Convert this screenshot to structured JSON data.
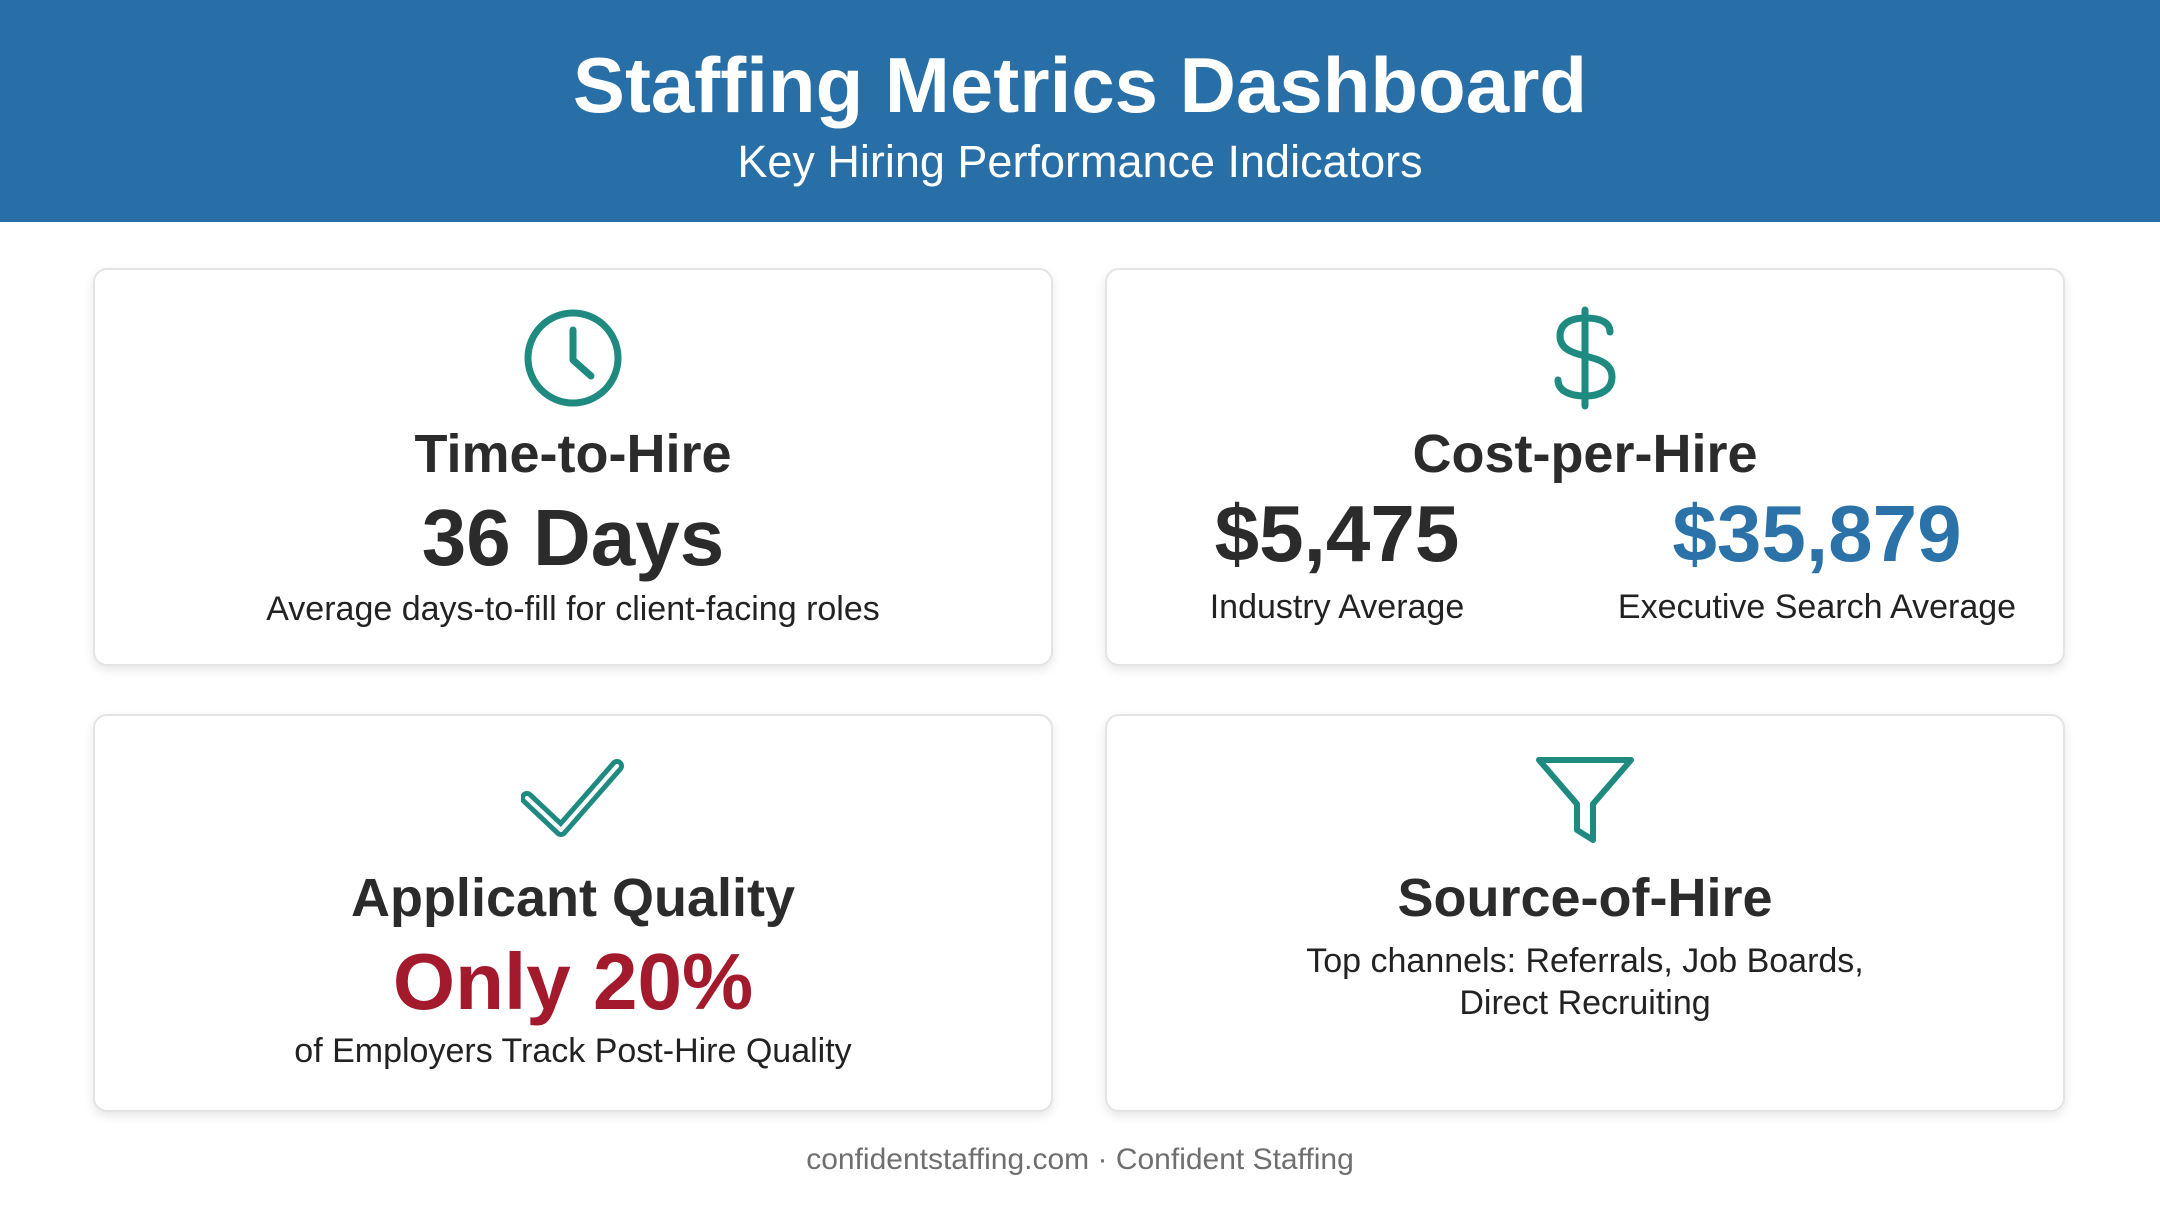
{
  "header": {
    "title": "Staffing Metrics Dashboard",
    "subtitle": "Key Hiring Performance Indicators"
  },
  "colors": {
    "header_bg": "#276fa6",
    "icon_teal": "#1e8a80",
    "accent_blue": "#2a72a8",
    "accent_red": "#a31a2c",
    "text_dark": "#2b2b2b",
    "footer_gray": "#6f6f6f"
  },
  "cards": {
    "time_to_hire": {
      "icon": "clock-icon",
      "title": "Time-to-Hire",
      "value": "36 Days",
      "caption": "Average days-to-fill for client-facing roles"
    },
    "cost_per_hire": {
      "icon": "dollar-icon",
      "title": "Cost-per-Hire",
      "industry_value": "$5,475",
      "industry_label": "Industry Average",
      "executive_value": "$35,879",
      "executive_label": "Executive Search Average"
    },
    "applicant_quality": {
      "icon": "checkmark-icon",
      "title": "Applicant Quality",
      "value": "Only 20%",
      "caption": "of Employers Track Post-Hire Quality"
    },
    "source_of_hire": {
      "icon": "funnel-icon",
      "title": "Source-of-Hire",
      "caption_line1": "Top channels: Referrals, Job Boards,",
      "caption_line2": "Direct Recruiting"
    }
  },
  "footer": {
    "text": "confidentstaffing.com · Confident Staffing"
  }
}
